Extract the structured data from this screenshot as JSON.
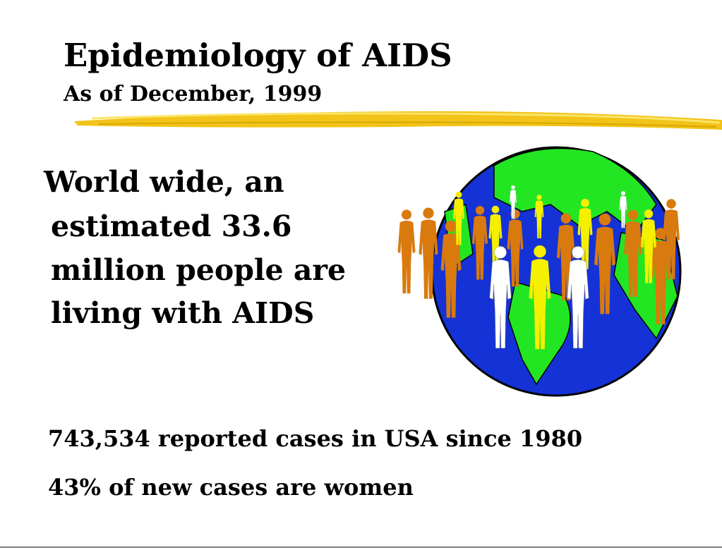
{
  "header": {
    "title": "Epidemiology of AIDS",
    "subtitle": "As of December, 1999"
  },
  "body": {
    "lines": [
      "World wide, an",
      "estimated 33.6",
      "million people are",
      "living with AIDS"
    ]
  },
  "bullets": [
    "743,534 reported cases in USA since 1980",
    "43% of new cases are women"
  ]
}
